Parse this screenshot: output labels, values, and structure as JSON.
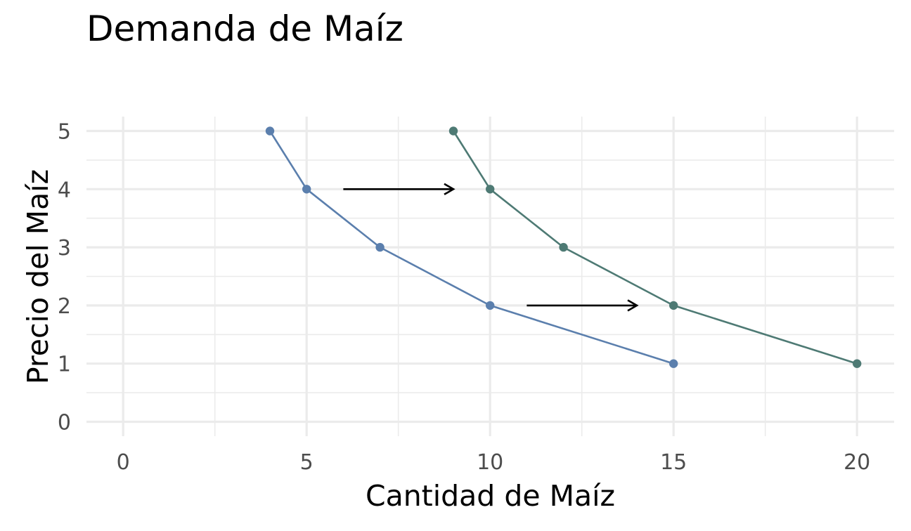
{
  "chart_data": {
    "type": "line",
    "title": "Demanda de Maíz",
    "xlabel": "Cantidad de Maíz",
    "ylabel": "Precio del Maíz",
    "xlim": [
      0,
      20
    ],
    "ylim": [
      0,
      5
    ],
    "x_ticks": [
      0,
      5,
      10,
      15,
      20
    ],
    "y_ticks": [
      0,
      1,
      2,
      3,
      4,
      5
    ],
    "grid": true,
    "legend": "none",
    "series": [
      {
        "color": "#5b7fad",
        "points": [
          {
            "x": 4,
            "y": 5
          },
          {
            "x": 5,
            "y": 4
          },
          {
            "x": 7,
            "y": 3
          },
          {
            "x": 10,
            "y": 2
          },
          {
            "x": 15,
            "y": 1
          }
        ]
      },
      {
        "color": "#4e7a74",
        "points": [
          {
            "x": 9,
            "y": 5
          },
          {
            "x": 10,
            "y": 4
          },
          {
            "x": 12,
            "y": 3
          },
          {
            "x": 15,
            "y": 2
          },
          {
            "x": 20,
            "y": 1
          }
        ]
      }
    ],
    "annotations": [
      {
        "type": "arrow",
        "from": {
          "x": 6,
          "y": 4
        },
        "to": {
          "x": 9,
          "y": 4
        },
        "color": "#000000"
      },
      {
        "type": "arrow",
        "from": {
          "x": 11,
          "y": 2
        },
        "to": {
          "x": 14,
          "y": 2
        },
        "color": "#000000"
      }
    ]
  }
}
